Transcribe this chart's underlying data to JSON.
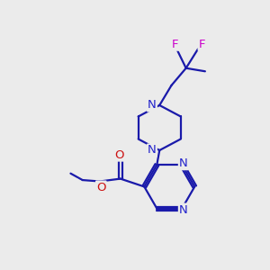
{
  "bg_color": "#ebebeb",
  "bond_color": "#1a1aaa",
  "bond_width": 1.6,
  "atom_colors": {
    "N": "#2222cc",
    "O": "#cc1111",
    "F": "#cc00cc"
  }
}
